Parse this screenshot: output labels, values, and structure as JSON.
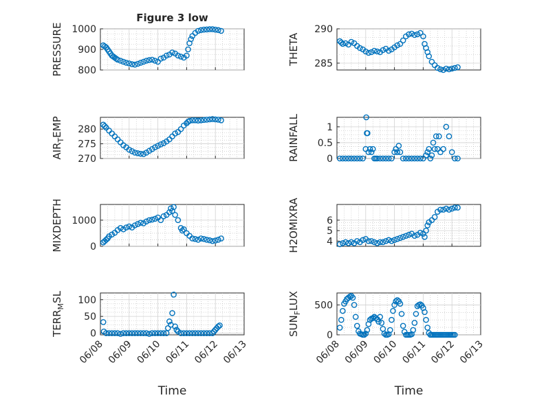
{
  "chart_data": [
    {
      "type": "scatter",
      "title": "Figure 3 low",
      "ylabel": "PRESSURE",
      "ylim": [
        800,
        1000
      ],
      "yticks": [
        "800",
        "900",
        "1000"
      ],
      "xlim": [
        0,
        5
      ],
      "xticks": [
        "06/08",
        "06/09",
        "06/10",
        "06/11",
        "06/12",
        "06/13"
      ],
      "show_xticklabels": false,
      "xlabel": "",
      "grid": true,
      "series": [
        {
          "x": [
            0.1,
            0.15,
            0.2,
            0.25,
            0.3,
            0.35,
            0.4,
            0.45,
            0.5,
            0.55,
            0.6,
            0.7,
            0.8,
            0.9,
            1.0,
            1.1,
            1.2,
            1.3,
            1.4,
            1.5,
            1.6,
            1.7,
            1.8,
            1.9,
            2.0,
            2.1,
            2.2,
            2.3,
            2.4,
            2.5,
            2.6,
            2.7,
            2.8,
            2.9,
            3.0,
            3.05,
            3.1,
            3.15,
            3.2,
            3.3,
            3.4,
            3.5,
            3.6,
            3.7,
            3.8,
            3.9,
            4.0,
            4.1,
            4.2
          ],
          "y": [
            920,
            915,
            910,
            900,
            890,
            880,
            870,
            865,
            860,
            855,
            850,
            845,
            840,
            835,
            832,
            828,
            826,
            830,
            835,
            840,
            845,
            848,
            850,
            845,
            840,
            855,
            860,
            870,
            875,
            885,
            880,
            870,
            865,
            860,
            870,
            900,
            930,
            950,
            965,
            980,
            990,
            994,
            996,
            997,
            998,
            998,
            996,
            994,
            990
          ]
        }
      ]
    },
    {
      "type": "scatter",
      "title": "",
      "ylabel": "THETA",
      "ylim": [
        284,
        290
      ],
      "yticks": [
        "285",
        "290"
      ],
      "xlim": [
        0,
        5
      ],
      "xticks": [
        "06/08",
        "06/09",
        "06/10",
        "06/11",
        "06/12",
        "06/13"
      ],
      "show_xticklabels": false,
      "xlabel": "",
      "grid": true,
      "series": [
        {
          "x": [
            0.1,
            0.15,
            0.2,
            0.3,
            0.4,
            0.5,
            0.6,
            0.7,
            0.8,
            0.9,
            1.0,
            1.1,
            1.2,
            1.3,
            1.4,
            1.5,
            1.6,
            1.7,
            1.8,
            1.9,
            2.0,
            2.1,
            2.2,
            2.3,
            2.4,
            2.5,
            2.6,
            2.7,
            2.8,
            2.9,
            3.0,
            3.05,
            3.1,
            3.15,
            3.2,
            3.3,
            3.4,
            3.5,
            3.6,
            3.7,
            3.8,
            3.9,
            4.0,
            4.1,
            4.2
          ],
          "y": [
            288.2,
            288.0,
            287.8,
            287.9,
            287.7,
            288.1,
            287.9,
            287.5,
            287.2,
            287.0,
            286.7,
            286.5,
            286.6,
            286.8,
            286.7,
            286.6,
            286.9,
            287.1,
            286.8,
            287.0,
            287.3,
            287.6,
            287.8,
            288.3,
            288.9,
            289.2,
            289.3,
            289.1,
            289.2,
            289.4,
            288.9,
            287.8,
            287.2,
            286.6,
            286.0,
            285.2,
            284.7,
            284.3,
            284.1,
            284.0,
            284.2,
            284.1,
            284.2,
            284.3,
            284.4
          ]
        }
      ]
    },
    {
      "type": "scatter",
      "title": "",
      "ylabel": "AIR",
      "ylabel_sub": "T",
      "ylabel_suffix": "EMP",
      "ylim": [
        270,
        284
      ],
      "yticks": [
        "270",
        "275",
        "280"
      ],
      "xlim": [
        0,
        5
      ],
      "xticks": [
        "06/08",
        "06/09",
        "06/10",
        "06/11",
        "06/12",
        "06/13"
      ],
      "show_xticklabels": false,
      "xlabel": "",
      "grid": true,
      "series": [
        {
          "x": [
            0.1,
            0.15,
            0.2,
            0.3,
            0.4,
            0.5,
            0.6,
            0.7,
            0.8,
            0.9,
            1.0,
            1.1,
            1.2,
            1.3,
            1.4,
            1.5,
            1.6,
            1.7,
            1.8,
            1.9,
            2.0,
            2.1,
            2.2,
            2.3,
            2.4,
            2.5,
            2.6,
            2.7,
            2.8,
            2.9,
            3.0,
            3.05,
            3.1,
            3.2,
            3.3,
            3.4,
            3.5,
            3.6,
            3.7,
            3.8,
            3.9,
            4.0,
            4.1,
            4.2
          ],
          "y": [
            281.5,
            281.0,
            280.5,
            279.5,
            278.5,
            277.5,
            276.5,
            275.5,
            274.5,
            273.8,
            273.0,
            272.5,
            272.0,
            271.8,
            271.6,
            271.5,
            272.0,
            272.6,
            273.2,
            273.8,
            274.3,
            274.8,
            275.2,
            275.8,
            276.5,
            277.5,
            278.5,
            279.0,
            280.0,
            281.2,
            282.0,
            282.5,
            282.8,
            283.0,
            283.0,
            282.9,
            283.0,
            283.1,
            283.2,
            283.3,
            283.4,
            283.3,
            283.2,
            283.0
          ]
        }
      ]
    },
    {
      "type": "scatter",
      "title": "",
      "ylabel": "RAINFALL",
      "ylim": [
        0,
        1.3
      ],
      "yticks": [
        "0",
        "0.5",
        "1"
      ],
      "xlim": [
        0,
        5
      ],
      "xticks": [
        "06/08",
        "06/09",
        "06/10",
        "06/11",
        "06/12",
        "06/13"
      ],
      "show_xticklabels": false,
      "xlabel": "",
      "grid": true,
      "series": [
        {
          "x": [
            0.1,
            0.2,
            0.3,
            0.4,
            0.5,
            0.6,
            0.7,
            0.8,
            0.9,
            1.0,
            1.02,
            1.04,
            1.06,
            1.1,
            1.15,
            1.2,
            1.25,
            1.3,
            1.35,
            1.4,
            1.5,
            1.6,
            1.7,
            1.8,
            1.9,
            2.0,
            2.05,
            2.1,
            2.15,
            2.2,
            2.3,
            2.4,
            2.5,
            2.6,
            2.7,
            2.8,
            2.9,
            3.0,
            3.1,
            3.15,
            3.2,
            3.25,
            3.3,
            3.35,
            3.4,
            3.45,
            3.5,
            3.55,
            3.6,
            3.7,
            3.8,
            3.9,
            4.0,
            4.1,
            4.2
          ],
          "y": [
            0,
            0,
            0,
            0,
            0,
            0,
            0,
            0,
            0,
            0.3,
            1.3,
            0.8,
            0.8,
            0.2,
            0.3,
            0.2,
            0.3,
            0,
            0,
            0,
            0,
            0,
            0,
            0,
            0,
            0.2,
            0.3,
            0.2,
            0.4,
            0.2,
            0,
            0,
            0,
            0,
            0,
            0,
            0,
            0,
            0.1,
            0.2,
            0.3,
            0,
            0.1,
            0.5,
            0.3,
            0.7,
            0.3,
            0.7,
            0.2,
            0.3,
            1.0,
            0.7,
            0.2,
            0,
            0
          ]
        }
      ]
    },
    {
      "type": "scatter",
      "title": "",
      "ylabel": "MIXDEPTH",
      "ylim": [
        0,
        1600
      ],
      "yticks": [
        "0",
        "1000"
      ],
      "xlim": [
        0,
        5
      ],
      "xticks": [
        "06/08",
        "06/09",
        "06/10",
        "06/11",
        "06/12",
        "06/13"
      ],
      "show_xticklabels": false,
      "xlabel": "",
      "grid": true,
      "series": [
        {
          "x": [
            0.1,
            0.15,
            0.2,
            0.25,
            0.3,
            0.4,
            0.5,
            0.6,
            0.7,
            0.8,
            0.9,
            1.0,
            1.1,
            1.2,
            1.3,
            1.4,
            1.5,
            1.6,
            1.7,
            1.8,
            1.9,
            2.0,
            2.1,
            2.2,
            2.3,
            2.4,
            2.45,
            2.5,
            2.55,
            2.6,
            2.7,
            2.8,
            2.85,
            2.9,
            3.0,
            3.1,
            3.2,
            3.3,
            3.4,
            3.5,
            3.6,
            3.7,
            3.8,
            3.9,
            4.0,
            4.1,
            4.2
          ],
          "y": [
            150,
            200,
            250,
            300,
            380,
            450,
            520,
            620,
            700,
            650,
            720,
            760,
            720,
            800,
            850,
            900,
            880,
            950,
            1000,
            1020,
            1050,
            1100,
            1000,
            1150,
            1200,
            1300,
            1450,
            1350,
            1500,
            1200,
            1000,
            700,
            600,
            650,
            500,
            400,
            300,
            280,
            250,
            300,
            280,
            250,
            230,
            200,
            220,
            250,
            300
          ]
        }
      ]
    },
    {
      "type": "scatter",
      "title": "",
      "ylabel": "H2OMIXRA",
      "ylim": [
        3.5,
        7.5
      ],
      "yticks": [
        "4",
        "5",
        "6"
      ],
      "xlim": [
        0,
        5
      ],
      "xticks": [
        "06/08",
        "06/09",
        "06/10",
        "06/11",
        "06/12",
        "06/13"
      ],
      "show_xticklabels": false,
      "xlabel": "",
      "grid": true,
      "series": [
        {
          "x": [
            0.1,
            0.2,
            0.3,
            0.4,
            0.5,
            0.6,
            0.7,
            0.8,
            0.9,
            1.0,
            1.1,
            1.2,
            1.3,
            1.4,
            1.5,
            1.6,
            1.7,
            1.8,
            1.9,
            2.0,
            2.1,
            2.2,
            2.3,
            2.4,
            2.5,
            2.6,
            2.7,
            2.8,
            2.9,
            3.0,
            3.05,
            3.1,
            3.15,
            3.2,
            3.3,
            3.4,
            3.5,
            3.6,
            3.7,
            3.8,
            3.9,
            4.0,
            4.1,
            4.2
          ],
          "y": [
            3.7,
            3.8,
            3.9,
            3.8,
            3.9,
            3.8,
            4.0,
            3.9,
            4.1,
            4.2,
            4.0,
            4.0,
            3.9,
            3.8,
            3.9,
            3.9,
            4.0,
            4.1,
            4.0,
            4.1,
            4.2,
            4.3,
            4.4,
            4.5,
            4.6,
            4.7,
            4.5,
            4.6,
            4.8,
            4.7,
            4.4,
            5.0,
            5.5,
            5.8,
            6.0,
            6.3,
            6.8,
            7.0,
            7.0,
            7.1,
            7.0,
            7.1,
            7.2,
            7.2
          ]
        }
      ]
    },
    {
      "type": "scatter",
      "title": "",
      "ylabel": "TERR",
      "ylabel_sub": "M",
      "ylabel_suffix": "SL",
      "ylim": [
        -5,
        120
      ],
      "yticks": [
        "0",
        "50",
        "100"
      ],
      "xlim": [
        0,
        5
      ],
      "xticks": [
        "06/08",
        "06/09",
        "06/10",
        "06/11",
        "06/12",
        "06/13"
      ],
      "show_xticklabels": true,
      "xlabel": "Time",
      "grid": true,
      "series": [
        {
          "x": [
            0.1,
            0.12,
            0.2,
            0.3,
            0.4,
            0.5,
            0.6,
            0.7,
            0.8,
            0.9,
            1.0,
            1.1,
            1.2,
            1.3,
            1.4,
            1.5,
            1.6,
            1.7,
            1.8,
            1.9,
            2.0,
            2.1,
            2.2,
            2.3,
            2.35,
            2.4,
            2.45,
            2.5,
            2.55,
            2.6,
            2.65,
            2.7,
            2.8,
            2.9,
            3.0,
            3.1,
            3.2,
            3.3,
            3.4,
            3.5,
            3.6,
            3.7,
            3.8,
            3.9,
            3.95,
            4.0,
            4.05,
            4.1,
            4.15
          ],
          "y": [
            33,
            5,
            0,
            0,
            0,
            0,
            0,
            -2,
            0,
            0,
            0,
            0,
            0,
            0,
            0,
            0,
            0,
            -2,
            0,
            0,
            0,
            0,
            0,
            0,
            15,
            35,
            25,
            60,
            115,
            20,
            10,
            5,
            0,
            0,
            0,
            0,
            0,
            0,
            0,
            0,
            0,
            0,
            0,
            0,
            5,
            10,
            15,
            20,
            23
          ]
        }
      ]
    },
    {
      "type": "scatter",
      "title": "",
      "ylabel": "SUN",
      "ylabel_sub": "F",
      "ylabel_suffix": "LUX",
      "ylim": [
        0,
        700
      ],
      "yticks": [
        "0",
        "500"
      ],
      "xlim": [
        0,
        5
      ],
      "xticks": [
        "06/08",
        "06/09",
        "06/10",
        "06/11",
        "06/12",
        "06/13"
      ],
      "show_xticklabels": true,
      "xlabel": "Time",
      "grid": true,
      "series": [
        {
          "x": [
            0.1,
            0.15,
            0.2,
            0.25,
            0.3,
            0.35,
            0.4,
            0.45,
            0.5,
            0.55,
            0.6,
            0.65,
            0.7,
            0.75,
            0.8,
            0.85,
            0.9,
            0.95,
            1.0,
            1.05,
            1.1,
            1.15,
            1.2,
            1.25,
            1.3,
            1.35,
            1.4,
            1.45,
            1.5,
            1.55,
            1.6,
            1.65,
            1.7,
            1.75,
            1.8,
            1.85,
            1.9,
            1.95,
            2.0,
            2.05,
            2.1,
            2.15,
            2.2,
            2.25,
            2.3,
            2.35,
            2.4,
            2.45,
            2.5,
            2.55,
            2.6,
            2.65,
            2.7,
            2.75,
            2.8,
            2.85,
            2.9,
            2.95,
            3.0,
            3.05,
            3.1,
            3.15,
            3.2,
            3.25,
            3.3,
            3.35,
            3.4,
            3.45,
            3.5,
            3.55,
            3.6,
            3.65,
            3.7,
            3.75,
            3.8,
            3.85,
            3.9,
            3.95,
            4.0,
            4.05,
            4.1
          ],
          "y": [
            120,
            250,
            400,
            520,
            560,
            600,
            620,
            640,
            650,
            620,
            500,
            300,
            150,
            60,
            20,
            10,
            0,
            0,
            20,
            80,
            180,
            250,
            270,
            280,
            300,
            280,
            260,
            220,
            300,
            200,
            100,
            20,
            0,
            0,
            10,
            80,
            250,
            400,
            500,
            560,
            580,
            560,
            520,
            350,
            150,
            50,
            0,
            0,
            0,
            0,
            10,
            80,
            200,
            350,
            480,
            500,
            510,
            490,
            450,
            380,
            250,
            120,
            30,
            0,
            0,
            0,
            0,
            0,
            0,
            0,
            0,
            0,
            0,
            0,
            0,
            0,
            0,
            0,
            0,
            0,
            0
          ]
        }
      ]
    }
  ]
}
